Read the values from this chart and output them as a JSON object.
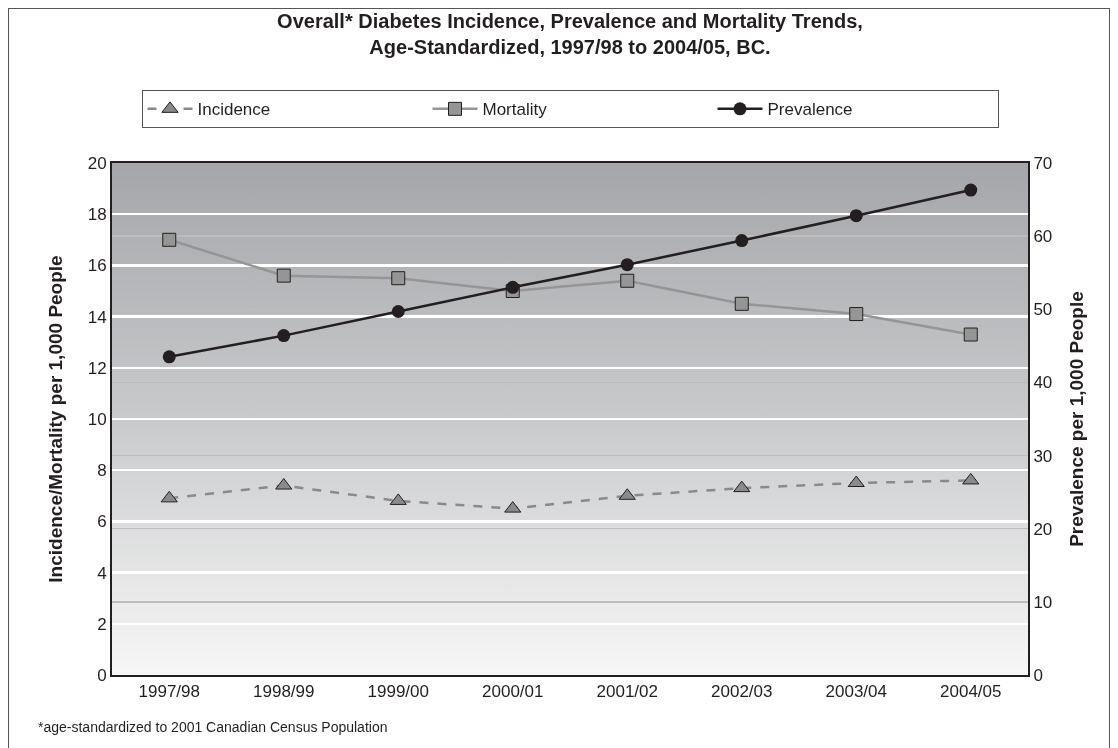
{
  "chart_data": {
    "type": "line",
    "title": "Overall* Diabetes Incidence, Prevalence and Mortality Trends, Age-Standardized, 1997/98 to 2004/05, BC.",
    "categories": [
      "1997/98",
      "1998/99",
      "1999/00",
      "2000/01",
      "2001/02",
      "2002/03",
      "2003/04",
      "2004/05"
    ],
    "series": [
      {
        "name": "Incidence",
        "color": "#8a8a8a",
        "marker": "triangle",
        "line_style": "dashed",
        "values": [
          6.9,
          7.4,
          6.8,
          6.5,
          7.0,
          7.3,
          7.5,
          7.6
        ]
      },
      {
        "name": "Mortality",
        "color": "#959595",
        "marker": "square",
        "line_style": "solid",
        "values": [
          17.0,
          15.6,
          15.5,
          15.0,
          15.4,
          14.5,
          14.1,
          13.3
        ]
      },
      {
        "name": "Prevalence",
        "color": "#231f20",
        "marker": "circle",
        "line_style": "solid",
        "axis": "y2",
        "values": [
          43.5,
          46.4,
          49.7,
          53.0,
          56.1,
          59.4,
          62.8,
          66.3
        ]
      }
    ],
    "ylabel": "Incidence/Mortality per 1,000 People",
    "y2label": "Prevalence per 1,000 People",
    "ylim": [
      0,
      20
    ],
    "yticks": [
      0,
      2,
      4,
      6,
      8,
      10,
      12,
      14,
      16,
      18,
      20
    ],
    "y2lim": [
      0,
      70
    ],
    "y2ticks": [
      0,
      10,
      20,
      30,
      40,
      50,
      60,
      70
    ],
    "grid": "y",
    "legend": "top",
    "annotations": [
      "*age-standardized to 2001 Canadian Census Population"
    ]
  }
}
